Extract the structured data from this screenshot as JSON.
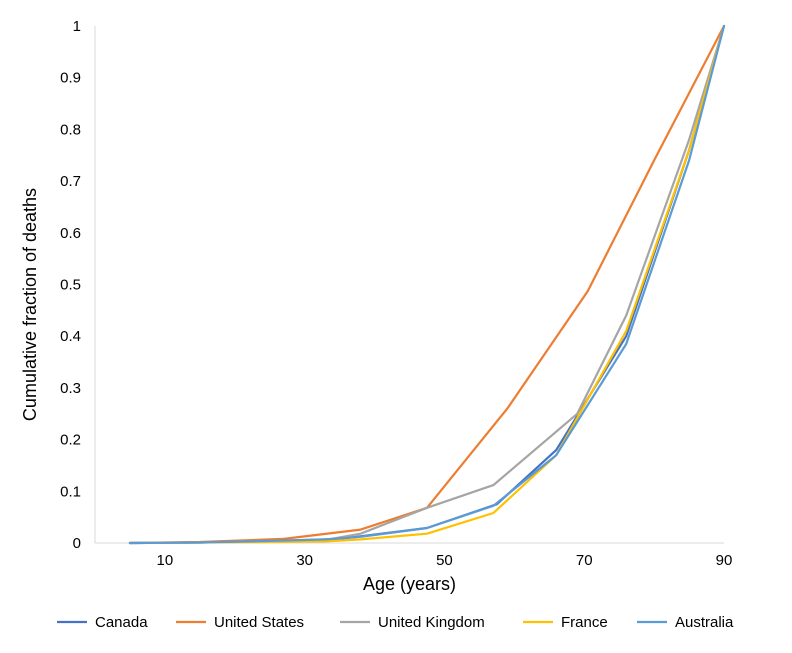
{
  "chart_data": {
    "type": "line",
    "title": "",
    "xlabel": "Age (years)",
    "ylabel": "Cumulative  fraction of deaths",
    "xlim": [
      0,
      90
    ],
    "ylim": [
      0,
      1
    ],
    "x_ticks": [
      10,
      30,
      50,
      70,
      90
    ],
    "y_ticks": [
      0,
      0.1,
      0.2,
      0.3,
      0.4,
      0.5,
      0.6,
      0.7,
      0.8,
      0.9,
      1
    ],
    "y_tick_labels": [
      "0",
      "0.1",
      "0.2",
      "0.3",
      "0.4",
      "0.5",
      "0.6",
      "0.7",
      "0.8",
      "0.9",
      "1"
    ],
    "grid": false,
    "legend_position": "bottom",
    "series": [
      {
        "name": "Canada",
        "color": "#4472C4",
        "points": [
          [
            5,
            0
          ],
          [
            15,
            0.001
          ],
          [
            25,
            0.003
          ],
          [
            35,
            0.008
          ],
          [
            38,
            0.013
          ],
          [
            47.5,
            0.029
          ],
          [
            57.5,
            0.075
          ],
          [
            66,
            0.18
          ],
          [
            76,
            0.4
          ],
          [
            85,
            0.76
          ],
          [
            90,
            1
          ]
        ]
      },
      {
        "name": "United States",
        "color": "#ED7D31",
        "points": [
          [
            5,
            0
          ],
          [
            15,
            0.002
          ],
          [
            27,
            0.008
          ],
          [
            38,
            0.026
          ],
          [
            47.5,
            0.068
          ],
          [
            59,
            0.26
          ],
          [
            70.5,
            0.487
          ],
          [
            80,
            0.74
          ],
          [
            90,
            1
          ]
        ]
      },
      {
        "name": "United Kingdom",
        "color": "#A5A5A5",
        "points": [
          [
            5,
            0
          ],
          [
            15,
            0.001
          ],
          [
            25,
            0.003
          ],
          [
            33,
            0.006
          ],
          [
            38,
            0.018
          ],
          [
            47.5,
            0.068
          ],
          [
            57,
            0.112
          ],
          [
            69,
            0.25
          ],
          [
            76,
            0.44
          ],
          [
            85,
            0.78
          ],
          [
            90,
            1
          ]
        ]
      },
      {
        "name": "France",
        "color": "#FFC000",
        "points": [
          [
            5,
            0
          ],
          [
            15,
            0.001
          ],
          [
            25,
            0.002
          ],
          [
            33,
            0.003
          ],
          [
            38,
            0.007
          ],
          [
            47.5,
            0.018
          ],
          [
            57,
            0.058
          ],
          [
            66,
            0.17
          ],
          [
            76,
            0.41
          ],
          [
            85,
            0.76
          ],
          [
            90,
            1
          ]
        ]
      },
      {
        "name": "Australia",
        "color": "#5B9BD5",
        "points": [
          [
            5,
            0
          ],
          [
            15,
            0.001
          ],
          [
            25,
            0.004
          ],
          [
            33,
            0.007
          ],
          [
            38,
            0.012
          ],
          [
            47.5,
            0.029
          ],
          [
            57,
            0.072
          ],
          [
            66,
            0.17
          ],
          [
            76,
            0.385
          ],
          [
            85,
            0.74
          ],
          [
            90,
            1
          ]
        ]
      }
    ]
  }
}
